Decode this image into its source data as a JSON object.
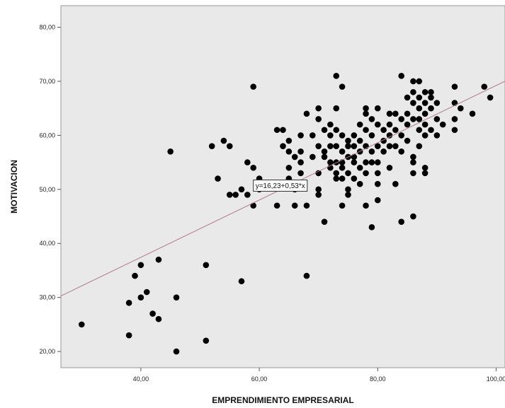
{
  "chart_data": {
    "type": "scatter",
    "xlabel": "EMPRENDIMIENTO EMPRESARIAL",
    "ylabel": "MOTIVACION",
    "xlim": [
      26.5,
      101.5
    ],
    "ylim": [
      17,
      84
    ],
    "x_ticks": [
      40,
      60,
      80,
      100
    ],
    "x_tick_labels": [
      "40,00",
      "60,00",
      "80,00",
      "100,00"
    ],
    "y_ticks": [
      20,
      30,
      40,
      50,
      60,
      70,
      80
    ],
    "y_tick_labels": [
      "20,00",
      "30,00",
      "40,00",
      "50,00",
      "60,00",
      "70,00",
      "80,00"
    ],
    "grid": false,
    "plot_background": "#e9e9e9",
    "point_color": "#000000",
    "fit_line": {
      "intercept": 16.23,
      "slope": 0.53,
      "label": "y=16,23+0,53*x",
      "color": "#b07a8e"
    },
    "points": [
      [
        30,
        25
      ],
      [
        38,
        23
      ],
      [
        38,
        29
      ],
      [
        39,
        34
      ],
      [
        40,
        36
      ],
      [
        40,
        30
      ],
      [
        41,
        31
      ],
      [
        42,
        27
      ],
      [
        43,
        26
      ],
      [
        43,
        37
      ],
      [
        45,
        57
      ],
      [
        46,
        30
      ],
      [
        46,
        20
      ],
      [
        51,
        22
      ],
      [
        51,
        36
      ],
      [
        52,
        58
      ],
      [
        53,
        52
      ],
      [
        54,
        59
      ],
      [
        55,
        58
      ],
      [
        55,
        49
      ],
      [
        56,
        49
      ],
      [
        57,
        33
      ],
      [
        57,
        50
      ],
      [
        58,
        55
      ],
      [
        58,
        49
      ],
      [
        59,
        69
      ],
      [
        59,
        54
      ],
      [
        59,
        47
      ],
      [
        60,
        50
      ],
      [
        60,
        52
      ],
      [
        63,
        61
      ],
      [
        63,
        47
      ],
      [
        64,
        61
      ],
      [
        64,
        58
      ],
      [
        65,
        59
      ],
      [
        65,
        57
      ],
      [
        65,
        54
      ],
      [
        65,
        52
      ],
      [
        66,
        56
      ],
      [
        66,
        50
      ],
      [
        66,
        47
      ],
      [
        67,
        60
      ],
      [
        67,
        57
      ],
      [
        67,
        55
      ],
      [
        67,
        53
      ],
      [
        68,
        64
      ],
      [
        68,
        47
      ],
      [
        68,
        34
      ],
      [
        69,
        60
      ],
      [
        69,
        56
      ],
      [
        70,
        63
      ],
      [
        70,
        65
      ],
      [
        70,
        58
      ],
      [
        70,
        53
      ],
      [
        70,
        50
      ],
      [
        70,
        49
      ],
      [
        71,
        61
      ],
      [
        71,
        57
      ],
      [
        71,
        56
      ],
      [
        71,
        44
      ],
      [
        72,
        60
      ],
      [
        72,
        58
      ],
      [
        72,
        55
      ],
      [
        72,
        54
      ],
      [
        72,
        62
      ],
      [
        73,
        71
      ],
      [
        73,
        65
      ],
      [
        73,
        61
      ],
      [
        73,
        58
      ],
      [
        73,
        55
      ],
      [
        73,
        53
      ],
      [
        73,
        52
      ],
      [
        74,
        69
      ],
      [
        74,
        60
      ],
      [
        74,
        57
      ],
      [
        74,
        55
      ],
      [
        74,
        54
      ],
      [
        74,
        52
      ],
      [
        74,
        47
      ],
      [
        75,
        59
      ],
      [
        75,
        58
      ],
      [
        75,
        56
      ],
      [
        75,
        53
      ],
      [
        75,
        50
      ],
      [
        75,
        49
      ],
      [
        76,
        60
      ],
      [
        76,
        58
      ],
      [
        76,
        56
      ],
      [
        76,
        55
      ],
      [
        76,
        52
      ],
      [
        77,
        62
      ],
      [
        77,
        59
      ],
      [
        77,
        57
      ],
      [
        77,
        54
      ],
      [
        77,
        51
      ],
      [
        78,
        65
      ],
      [
        78,
        64
      ],
      [
        78,
        61
      ],
      [
        78,
        58
      ],
      [
        78,
        55
      ],
      [
        78,
        53
      ],
      [
        78,
        47
      ],
      [
        79,
        63
      ],
      [
        79,
        60
      ],
      [
        79,
        57
      ],
      [
        79,
        55
      ],
      [
        79,
        43
      ],
      [
        80,
        65
      ],
      [
        80,
        62
      ],
      [
        80,
        58
      ],
      [
        80,
        55
      ],
      [
        80,
        53
      ],
      [
        80,
        51
      ],
      [
        80,
        48
      ],
      [
        81,
        61
      ],
      [
        81,
        59
      ],
      [
        81,
        57
      ],
      [
        82,
        64
      ],
      [
        82,
        62
      ],
      [
        82,
        60
      ],
      [
        82,
        58
      ],
      [
        82,
        54
      ],
      [
        83,
        64
      ],
      [
        83,
        61
      ],
      [
        83,
        58
      ],
      [
        83,
        51
      ],
      [
        84,
        71
      ],
      [
        84,
        63
      ],
      [
        84,
        60
      ],
      [
        84,
        57
      ],
      [
        84,
        44
      ],
      [
        85,
        67
      ],
      [
        85,
        64
      ],
      [
        85,
        62
      ],
      [
        85,
        59
      ],
      [
        86,
        70
      ],
      [
        86,
        68
      ],
      [
        86,
        66
      ],
      [
        86,
        63
      ],
      [
        86,
        56
      ],
      [
        86,
        55
      ],
      [
        86,
        53
      ],
      [
        86,
        45
      ],
      [
        87,
        70
      ],
      [
        87,
        67
      ],
      [
        87,
        65
      ],
      [
        87,
        63
      ],
      [
        87,
        61
      ],
      [
        87,
        58
      ],
      [
        88,
        68
      ],
      [
        88,
        66
      ],
      [
        88,
        64
      ],
      [
        88,
        62
      ],
      [
        88,
        60
      ],
      [
        88,
        54
      ],
      [
        88,
        53
      ],
      [
        89,
        68
      ],
      [
        89,
        67
      ],
      [
        89,
        65
      ],
      [
        89,
        61
      ],
      [
        90,
        66
      ],
      [
        90,
        63
      ],
      [
        90,
        60
      ],
      [
        91,
        62
      ],
      [
        93,
        69
      ],
      [
        93,
        66
      ],
      [
        93,
        63
      ],
      [
        93,
        61
      ],
      [
        94,
        65
      ],
      [
        96,
        64
      ],
      [
        98,
        69
      ],
      [
        99,
        67
      ]
    ]
  }
}
